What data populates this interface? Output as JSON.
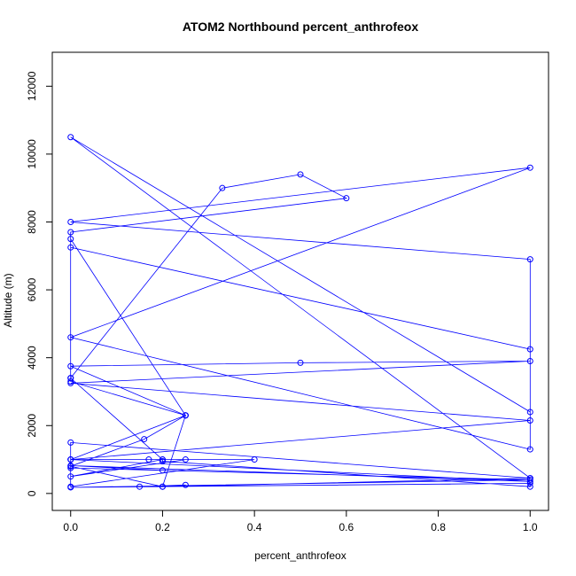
{
  "chart_data": {
    "type": "line",
    "title": "ATOM2 Northbound percent_anthrofeox",
    "xlabel": "percent_anthrofeox",
    "ylabel": "Altitude (m)",
    "xlim": [
      -0.04,
      1.04
    ],
    "ylim": [
      -500,
      13000
    ],
    "xticks": [
      0,
      0.2,
      0.4,
      0.6,
      0.8,
      1.0
    ],
    "xtick_labels": [
      "0.0",
      "0.2",
      "0.4",
      "0.6",
      "0.8",
      "1.0"
    ],
    "yticks": [
      0,
      2000,
      4000,
      6000,
      8000,
      10000,
      12000
    ],
    "ytick_labels": [
      "0",
      "2000",
      "4000",
      "6000",
      "8000",
      "10000",
      "12000"
    ],
    "grid": false,
    "line_color": "#0000ff",
    "marker": "open-circle",
    "series": [
      {
        "x": [
          0.15,
          0.25,
          0.2,
          0.25,
          0.0,
          0.0,
          0.2,
          0.2,
          1.0,
          1.0,
          0.0,
          1.0,
          0.0,
          0.2,
          0.0,
          1.0,
          0.0,
          0.0,
          0.17,
          0.25,
          0.0,
          0.2,
          0.4,
          0.0,
          0.0,
          1.0,
          0.2,
          0.0,
          0.16,
          0.25,
          0.0,
          0.5,
          1.0,
          0.0,
          1.0,
          0.0,
          0.25,
          0.0,
          0.0,
          0.33,
          0.5,
          0.6,
          0.0,
          0.0,
          1.0,
          1.0,
          0.0,
          1.0,
          0.0,
          1.0,
          1.0,
          0.0,
          1.0
        ],
        "y": [
          200,
          250,
          200,
          2300,
          3300,
          3400,
          1000,
          950,
          200,
          300,
          180,
          400,
          750,
          680,
          820,
          350,
          1000,
          1000,
          1000,
          1000,
          500,
          1000,
          1000,
          200,
          1500,
          450,
          200,
          800,
          1600,
          2300,
          3750,
          3850,
          3900,
          3250,
          2150,
          1000,
          2300,
          7500,
          3400,
          9000,
          9400,
          8700,
          7700,
          7250,
          4250,
          1300,
          4600,
          9600,
          8000,
          6900,
          2400,
          10500,
          450
        ]
      }
    ]
  }
}
